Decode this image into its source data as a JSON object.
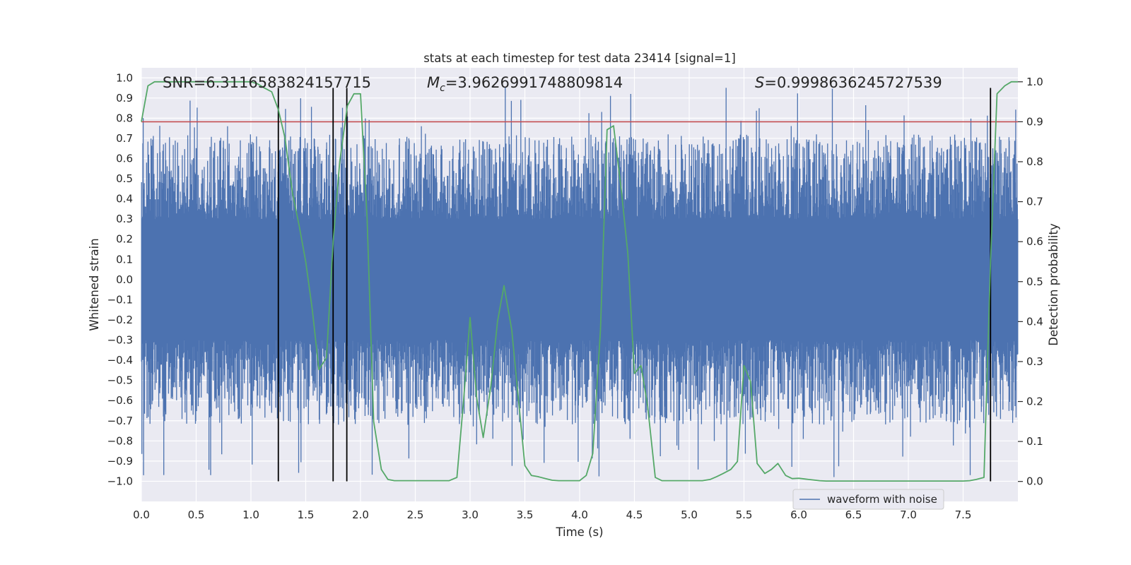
{
  "chart_data": {
    "type": "line",
    "title": "stats at each timestep for test data 23414 [signal=1]",
    "xlabel": "Time (s)",
    "ylabel": "Whitened strain",
    "y2label": "Detection probability",
    "xlim": [
      0.0,
      8.0
    ],
    "ylim": [
      -1.1,
      1.05
    ],
    "y2lim": [
      -0.05,
      1.035
    ],
    "x_ticks": [
      0.0,
      0.5,
      1.0,
      1.5,
      2.0,
      2.5,
      3.0,
      3.5,
      4.0,
      4.5,
      5.0,
      5.5,
      6.0,
      6.5,
      7.0,
      7.5
    ],
    "y_ticks": [
      1.0,
      0.9,
      0.8,
      0.7,
      0.6,
      0.5,
      0.4,
      0.3,
      0.2,
      0.1,
      0.0,
      -0.1,
      -0.2,
      -0.3,
      -0.4,
      -0.5,
      -0.6,
      -0.7,
      -0.8,
      -0.9,
      -1.0
    ],
    "y2_ticks": [
      1.0,
      0.9,
      0.8,
      0.7,
      0.6,
      0.5,
      0.4,
      0.3,
      0.2,
      0.1,
      0.0
    ],
    "annotations": {
      "snr": "SNR=6.3116583824157715",
      "mc_symbol": "M",
      "mc_sub": "c",
      "mc_value": "=3.9626991748809814",
      "s_symbol": "S",
      "s_value": "=0.9998636245727539"
    },
    "legend": {
      "location": "lower-right",
      "entries": [
        "waveform with noise"
      ]
    },
    "threshold": {
      "y2": 0.9,
      "color": "#c44e52"
    },
    "vertical_lines": {
      "x": [
        1.25,
        1.75,
        1.875,
        7.75
      ],
      "y_range": [
        -1.0,
        0.95
      ],
      "color": "#000000"
    },
    "series": [
      {
        "name": "waveform with noise",
        "axis": "left",
        "color": "#4c72b0",
        "style": "dense noise trace, envelope approx ±0.4 with spikes to ±0.95"
      },
      {
        "axis": "right",
        "color": "#55a868",
        "x": [
          0.0,
          0.06,
          0.12,
          0.25,
          0.5,
          0.75,
          1.0,
          1.06,
          1.12,
          1.19,
          1.25,
          1.31,
          1.38,
          1.44,
          1.5,
          1.56,
          1.62,
          1.69,
          1.75,
          1.81,
          1.88,
          1.94,
          2.0,
          2.06,
          2.12,
          2.19,
          2.25,
          2.31,
          2.44,
          2.56,
          2.69,
          2.81,
          2.88,
          2.94,
          3.0,
          3.06,
          3.12,
          3.19,
          3.25,
          3.31,
          3.38,
          3.44,
          3.5,
          3.56,
          3.62,
          3.69,
          3.75,
          3.81,
          3.88,
          3.94,
          4.0,
          4.06,
          4.12,
          4.19,
          4.25,
          4.31,
          4.38,
          4.44,
          4.5,
          4.56,
          4.62,
          4.69,
          4.75,
          4.81,
          4.88,
          5.0,
          5.12,
          5.19,
          5.25,
          5.31,
          5.38,
          5.44,
          5.5,
          5.56,
          5.62,
          5.69,
          5.75,
          5.81,
          5.88,
          5.94,
          6.0,
          6.06,
          6.12,
          6.19,
          6.25,
          6.5,
          6.75,
          7.0,
          7.25,
          7.5,
          7.56,
          7.62,
          7.69,
          7.75,
          7.81,
          7.88,
          7.94,
          8.0
        ],
        "y": [
          0.9,
          0.99,
          1.0,
          1.0,
          1.0,
          1.0,
          1.0,
          0.995,
          0.985,
          0.975,
          0.93,
          0.86,
          0.72,
          0.64,
          0.55,
          0.43,
          0.28,
          0.31,
          0.6,
          0.8,
          0.94,
          0.97,
          0.97,
          0.66,
          0.15,
          0.03,
          0.005,
          0.002,
          0.002,
          0.002,
          0.002,
          0.002,
          0.01,
          0.2,
          0.41,
          0.21,
          0.11,
          0.24,
          0.4,
          0.49,
          0.38,
          0.21,
          0.04,
          0.015,
          0.012,
          0.007,
          0.003,
          0.002,
          0.002,
          0.002,
          0.002,
          0.015,
          0.07,
          0.38,
          0.88,
          0.89,
          0.73,
          0.57,
          0.27,
          0.29,
          0.19,
          0.01,
          0.002,
          0.002,
          0.002,
          0.002,
          0.002,
          0.005,
          0.012,
          0.02,
          0.03,
          0.05,
          0.29,
          0.25,
          0.045,
          0.02,
          0.03,
          0.045,
          0.015,
          0.007,
          0.008,
          0.006,
          0.004,
          0.002,
          0.001,
          0.001,
          0.001,
          0.001,
          0.001,
          0.001,
          0.002,
          0.005,
          0.01,
          0.55,
          0.97,
          0.99,
          1.0,
          1.0
        ]
      }
    ]
  }
}
